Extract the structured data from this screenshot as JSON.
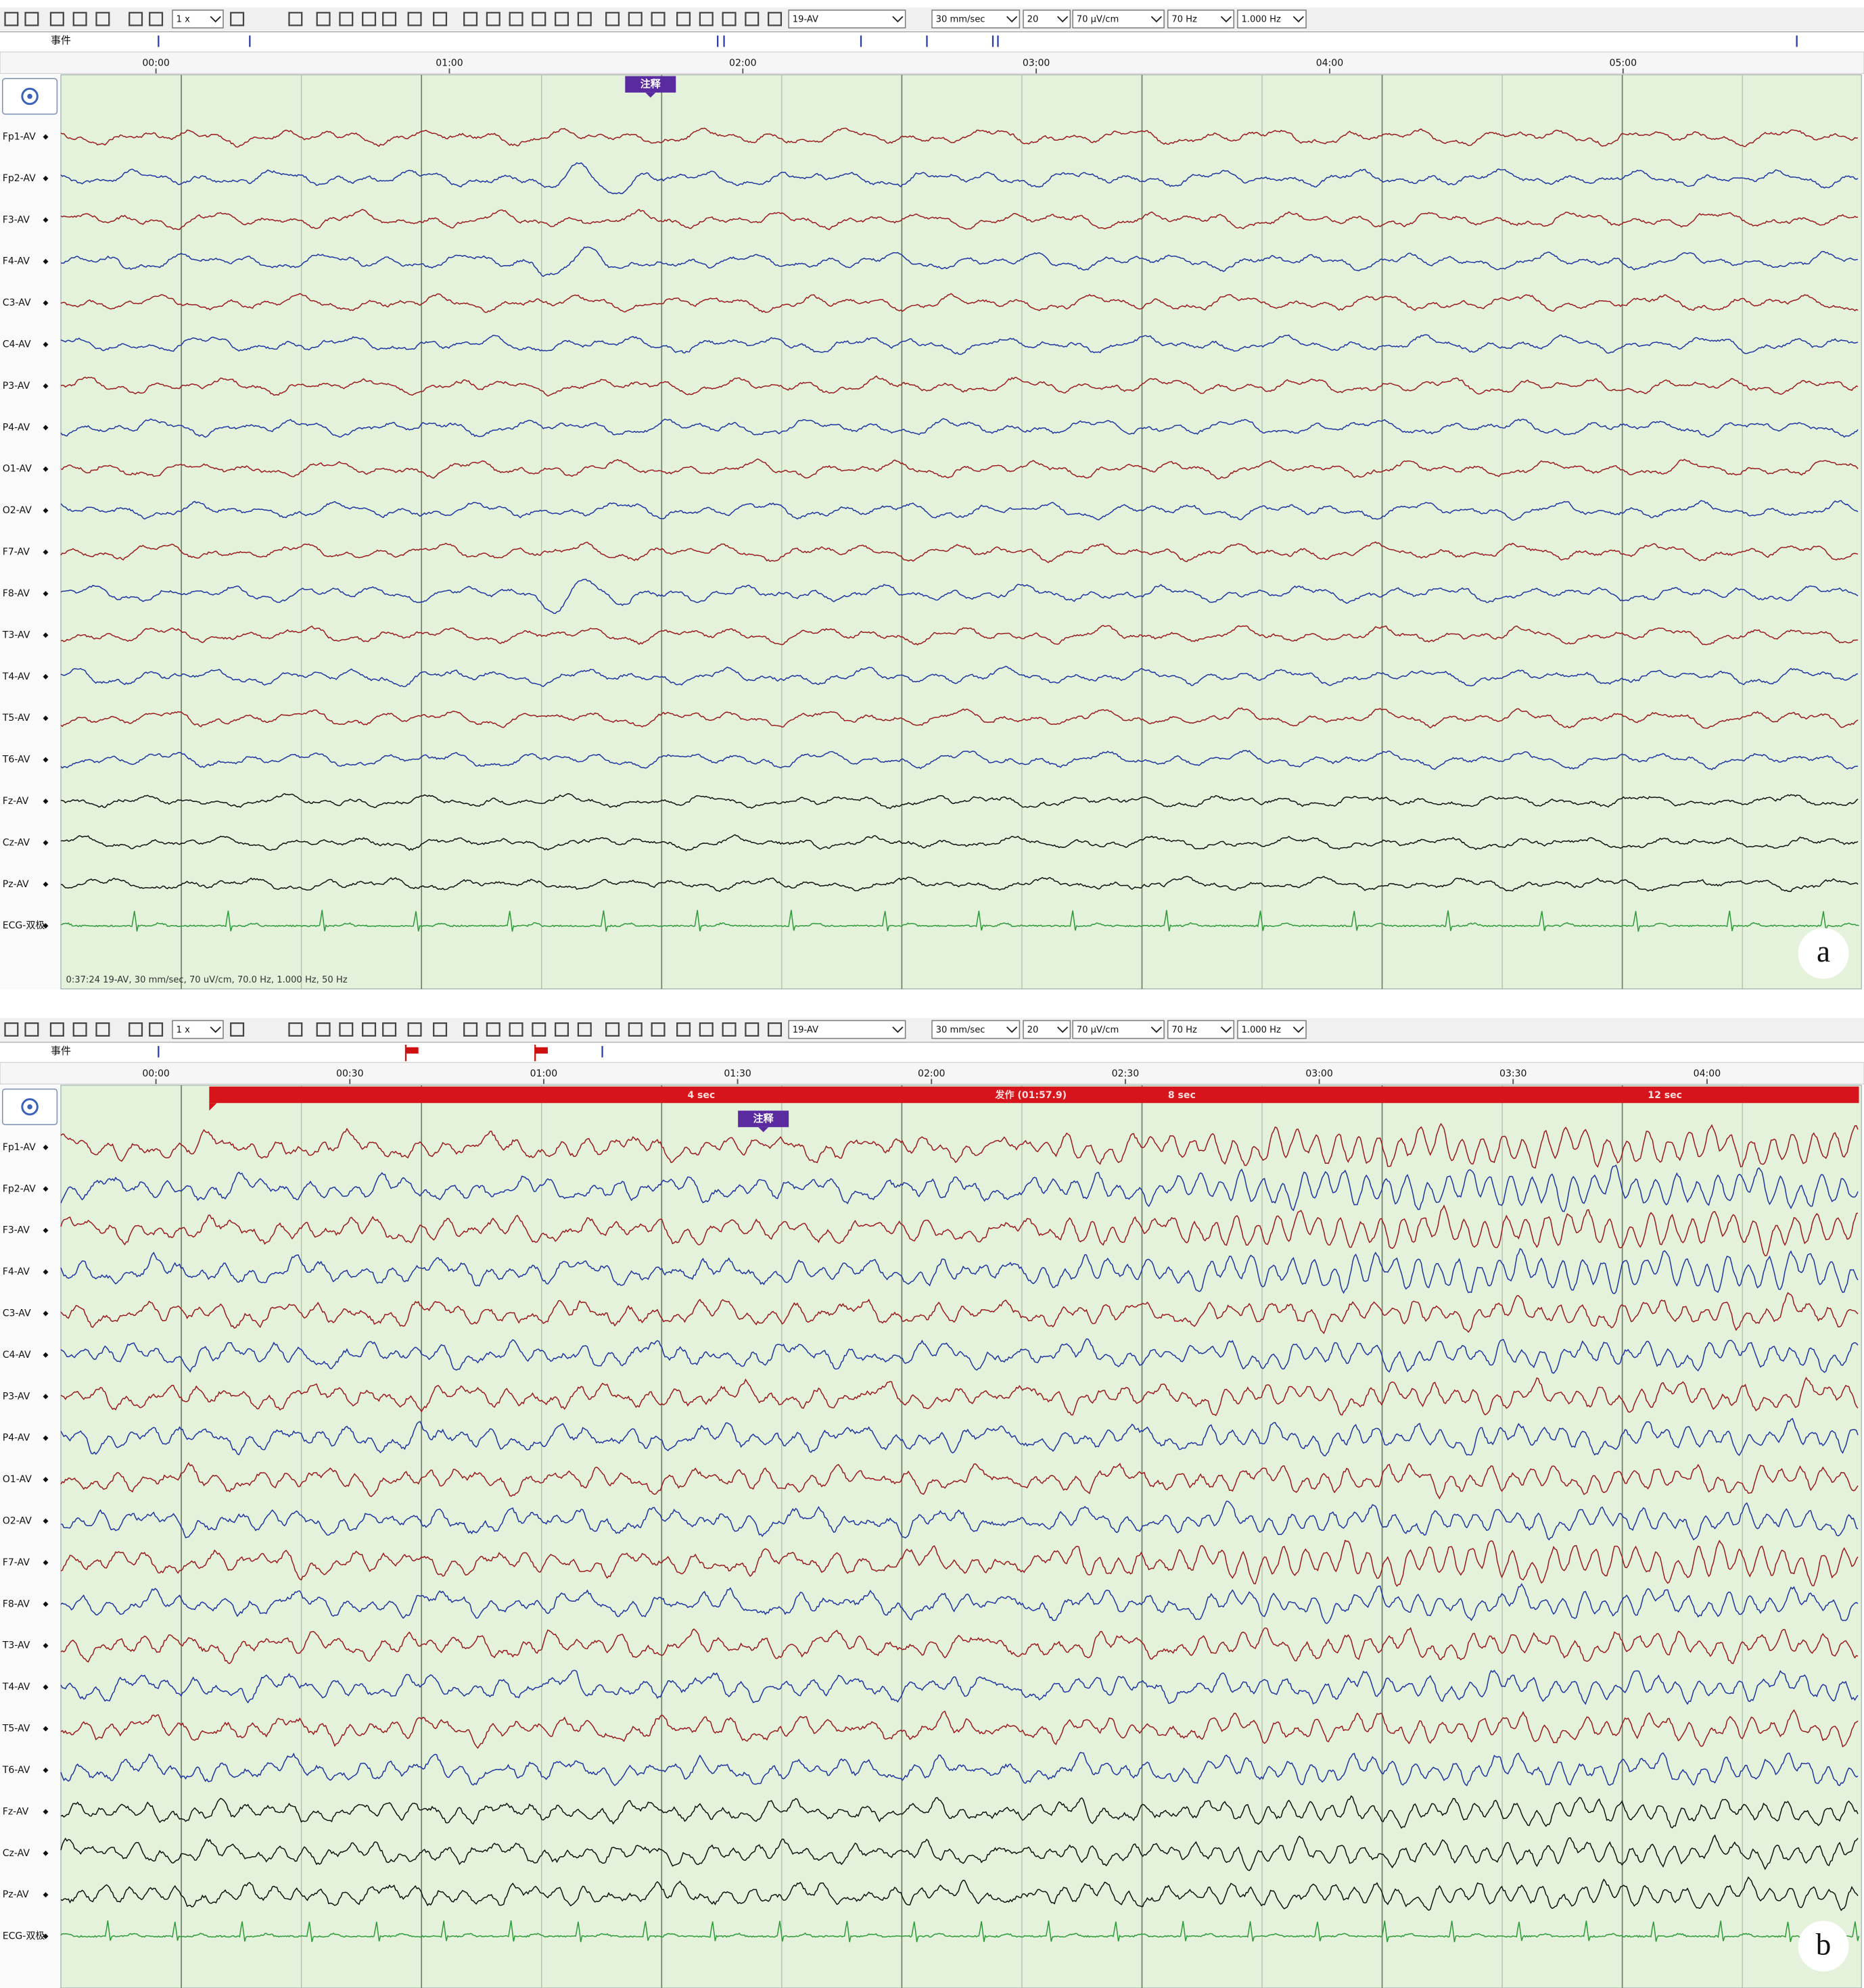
{
  "channels": [
    "Fp1-AV",
    "Fp2-AV",
    "F3-AV",
    "F4-AV",
    "C3-AV",
    "C4-AV",
    "P3-AV",
    "P4-AV",
    "O1-AV",
    "O2-AV",
    "F7-AV",
    "F8-AV",
    "T3-AV",
    "T4-AV",
    "T5-AV",
    "T6-AV",
    "Fz-AV",
    "Cz-AV",
    "Pz-AV",
    "ECG-双极"
  ],
  "panels": [
    {
      "label": "a",
      "toolbar": {
        "playback": "1 x",
        "montage": "19-AV",
        "sweep": "30 mm/sec",
        "page": "20",
        "sensitivity": "70 µV/cm",
        "high_filter": "70 Hz",
        "low_filter": "1.000 Hz"
      },
      "event_row_label": "事件",
      "time_ticks": [
        "00:00",
        "01:00",
        "02:00",
        "03:00",
        "04:00",
        "05:00"
      ],
      "annotation": "注释",
      "status": "0:37:24 19-AV, 30 mm/sec, 70 uV/cm, 70.0 Hz, 1.000 Hz, 50 Hz"
    },
    {
      "label": "b",
      "toolbar": {
        "playback": "1 x",
        "montage": "19-AV",
        "sweep": "30 mm/sec",
        "page": "20",
        "sensitivity": "70 µV/cm",
        "high_filter": "70 Hz",
        "low_filter": "1.000 Hz"
      },
      "event_row_label": "事件",
      "time_ticks": [
        "00:00",
        "00:30",
        "01:00",
        "01:30",
        "02:00",
        "02:30",
        "03:00",
        "03:30",
        "04:00"
      ],
      "annotation": "注释",
      "seizure_labels": [
        "4 sec",
        "发作 (01:57.9)",
        "8 sec",
        "12 sec"
      ]
    }
  ]
}
